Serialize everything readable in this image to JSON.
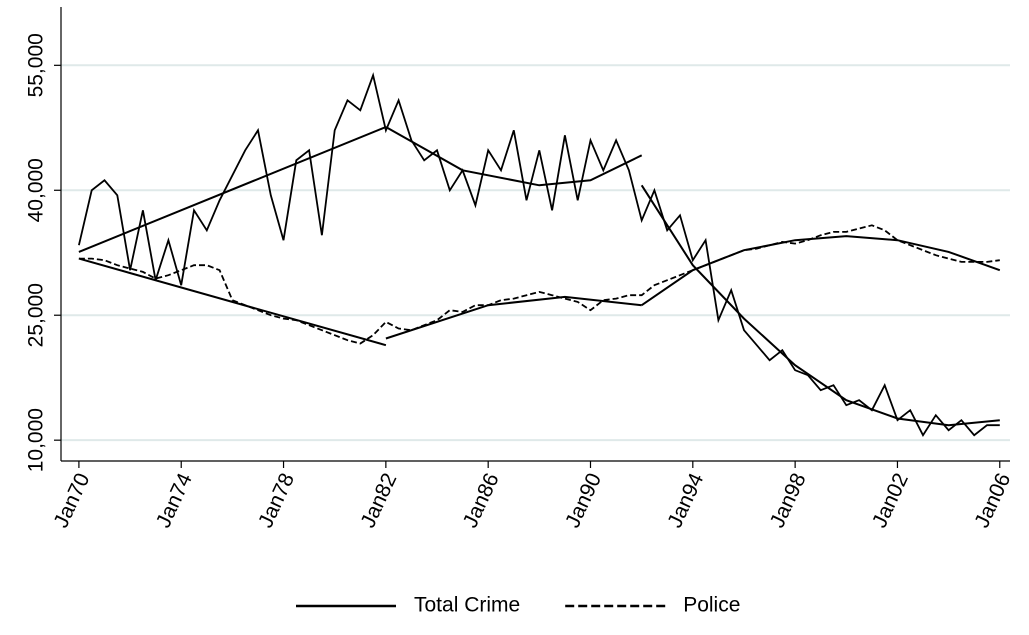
{
  "chart_data": {
    "type": "line",
    "xlim": [
      1969.3,
      2006.4
    ],
    "xticks": [
      {
        "value": 1970,
        "label": "Jan70"
      },
      {
        "value": 1974,
        "label": "Jan74"
      },
      {
        "value": 1978,
        "label": "Jan78"
      },
      {
        "value": 1982,
        "label": "Jan82"
      },
      {
        "value": 1986,
        "label": "Jan86"
      },
      {
        "value": 1990,
        "label": "Jan90"
      },
      {
        "value": 1994,
        "label": "Jan94"
      },
      {
        "value": 1998,
        "label": "Jan98"
      },
      {
        "value": 2002,
        "label": "Jan02"
      },
      {
        "value": 2006,
        "label": "Jan06"
      }
    ],
    "ylim": [
      7500,
      62000
    ],
    "yticks": [
      {
        "value": 10000,
        "label": "10,000"
      },
      {
        "value": 25000,
        "label": "25,000"
      },
      {
        "value": 40000,
        "label": "40,000"
      },
      {
        "value": 55000,
        "label": "55,000"
      }
    ],
    "grid": true,
    "legend": "bottom",
    "series": [
      {
        "name": "Total Crime",
        "color": "#000000",
        "dash": false,
        "x": [
          1970,
          1970.5,
          1971,
          1971.5,
          1972,
          1972.5,
          1973,
          1973.5,
          1974,
          1974.5,
          1975,
          1975.5,
          1976,
          1976.5,
          1977,
          1977.5,
          1978,
          1978.5,
          1979,
          1979.5,
          1980,
          1980.5,
          1981,
          1981.5,
          1982,
          1982.5,
          1983,
          1983.5,
          1984,
          1984.5,
          1985,
          1985.5,
          1986,
          1986.5,
          1987,
          1987.5,
          1988,
          1988.5,
          1989,
          1989.5,
          1990,
          1990.5,
          1991,
          1991.5,
          1992,
          1992.5,
          1993,
          1993.5,
          1994,
          1994.5,
          1995,
          1995.5,
          1996,
          1996.5,
          1997,
          1997.5,
          1998,
          1998.5,
          1999,
          1999.5,
          2000,
          2000.5,
          2001,
          2001.5,
          2002,
          2002.5,
          2003,
          2003.5,
          2004,
          2004.5,
          2005,
          2005.5,
          2006
        ],
        "values": [
          33400,
          40000,
          41200,
          39400,
          30400,
          37600,
          29200,
          34000,
          28600,
          37600,
          35200,
          38800,
          41800,
          44800,
          47200,
          39400,
          34000,
          43600,
          44800,
          34600,
          47200,
          50800,
          49600,
          53800,
          47200,
          50800,
          46000,
          43600,
          44800,
          40000,
          42400,
          38200,
          44800,
          42400,
          47200,
          38800,
          44800,
          37600,
          46600,
          38800,
          46000,
          42400,
          46000,
          42400,
          36400,
          40000,
          35200,
          37000,
          31600,
          34000,
          24400,
          28000,
          23200,
          21400,
          19600,
          20800,
          18400,
          17800,
          16000,
          16600,
          14200,
          14800,
          13600,
          16600,
          12400,
          13600,
          10600,
          13000,
          11200,
          12400,
          10600,
          11800,
          11800
        ]
      },
      {
        "name": "Police",
        "color": "#000000",
        "dash": true,
        "x": [
          1970,
          1970.5,
          1971,
          1971.5,
          1972,
          1972.5,
          1973,
          1973.5,
          1974,
          1974.5,
          1975,
          1975.5,
          1976,
          1976.5,
          1977,
          1977.5,
          1978,
          1978.5,
          1979,
          1979.5,
          1980,
          1980.5,
          1981,
          1981.5,
          1982,
          1982.5,
          1983,
          1983.5,
          1984,
          1984.5,
          1985,
          1985.5,
          1986,
          1986.5,
          1987,
          1987.5,
          1988,
          1988.5,
          1989,
          1989.5,
          1990,
          1990.5,
          1991,
          1991.5,
          1992,
          1992.5,
          1993,
          1993.5,
          1994,
          1994.5,
          1995,
          1995.5,
          1996,
          1996.5,
          1997,
          1997.5,
          1998,
          1998.5,
          1999,
          1999.5,
          2000,
          2000.5,
          2001,
          2001.5,
          2002,
          2002.5,
          2003,
          2003.5,
          2004,
          2004.5,
          2005,
          2005.5,
          2006
        ],
        "values": [
          31800,
          31800,
          31600,
          31000,
          30600,
          30200,
          29400,
          29800,
          30400,
          31000,
          31000,
          30400,
          26800,
          26200,
          25600,
          25000,
          24600,
          24400,
          23800,
          23200,
          22600,
          22000,
          21600,
          22600,
          24200,
          23400,
          23200,
          23800,
          24400,
          25600,
          25400,
          26200,
          26200,
          26800,
          27000,
          27400,
          27800,
          27400,
          27000,
          26600,
          25600,
          26800,
          27000,
          27400,
          27400,
          28600,
          29200,
          29800,
          30400,
          31000,
          31600,
          32200,
          32800,
          33000,
          33400,
          33800,
          33600,
          34000,
          34600,
          35000,
          35000,
          35400,
          35800,
          35200,
          34000,
          33400,
          32800,
          32200,
          31800,
          31400,
          31400,
          31400,
          31600
        ]
      },
      {
        "color": "#000000",
        "dash": false,
        "x": [
          1970,
          1982
        ],
        "values": [
          32600,
          47600
        ]
      },
      {
        "color": "#000000",
        "dash": false,
        "x": [
          1982,
          1985,
          1988,
          1990,
          1992
        ],
        "values": [
          47600,
          42400,
          40600,
          41200,
          44200
        ]
      },
      {
        "color": "#000000",
        "dash": false,
        "x": [
          1992,
          1994,
          1996,
          1998,
          2000,
          2002,
          2004,
          2006
        ],
        "values": [
          40600,
          31000,
          24600,
          19000,
          14800,
          12600,
          11800,
          12400
        ]
      },
      {
        "color": "#000000",
        "dash": false,
        "x": [
          1970,
          1982
        ],
        "values": [
          31800,
          21400
        ]
      },
      {
        "color": "#000000",
        "dash": false,
        "x": [
          1982,
          1986,
          1989,
          1992
        ],
        "values": [
          22200,
          26200,
          27200,
          26200
        ]
      },
      {
        "color": "#000000",
        "dash": false,
        "x": [
          1992,
          1994,
          1996,
          1998,
          2000,
          2002,
          2004,
          2006
        ],
        "values": [
          26200,
          30400,
          32800,
          34000,
          34500,
          34000,
          32600,
          30400
        ]
      }
    ]
  }
}
